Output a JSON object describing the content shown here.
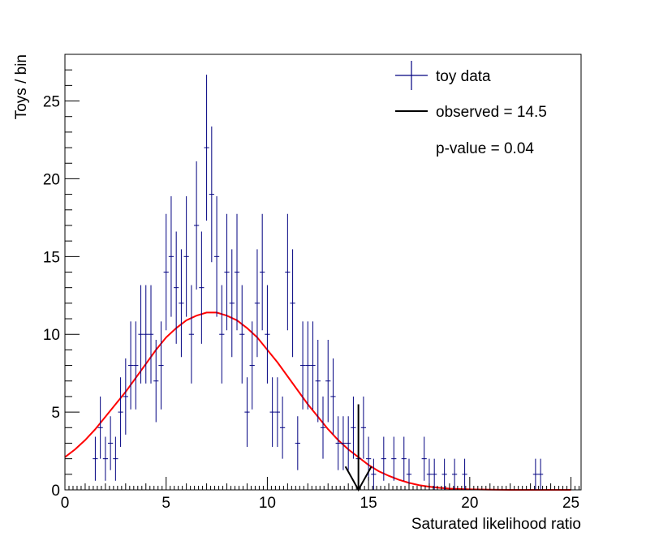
{
  "chart_data": {
    "type": "histogram",
    "xlabel": "Saturated likelihood ratio",
    "ylabel": "Toys / bin",
    "xlim": [
      0,
      25.5
    ],
    "ylim": [
      0,
      28
    ],
    "x_ticks": [
      "0",
      "5",
      "10",
      "15",
      "20",
      "25"
    ],
    "y_ticks": [
      "0",
      "5",
      "10",
      "15",
      "20",
      "25"
    ],
    "grid": false,
    "legend_position": "top-right",
    "legend": {
      "toy_label": "toy data",
      "observed_label": "observed = 14.5",
      "pvalue_label": "p-value = 0.04"
    },
    "colors": {
      "toy": "#000080",
      "fit": "#ff0000",
      "observed": "#000000"
    },
    "observed_value": 14.5,
    "bin_width": 0.25,
    "toy_points": [
      [
        1.5,
        2
      ],
      [
        1.75,
        4
      ],
      [
        2.0,
        2
      ],
      [
        2.25,
        3
      ],
      [
        2.5,
        2
      ],
      [
        2.75,
        5
      ],
      [
        3.0,
        6
      ],
      [
        3.25,
        8
      ],
      [
        3.5,
        8
      ],
      [
        3.75,
        10
      ],
      [
        4.0,
        10
      ],
      [
        4.25,
        10
      ],
      [
        4.5,
        7
      ],
      [
        4.75,
        8
      ],
      [
        5.0,
        14
      ],
      [
        5.25,
        15
      ],
      [
        5.5,
        13
      ],
      [
        5.75,
        12
      ],
      [
        6.0,
        15
      ],
      [
        6.25,
        10
      ],
      [
        6.5,
        17
      ],
      [
        6.75,
        13
      ],
      [
        7.0,
        22
      ],
      [
        7.25,
        19
      ],
      [
        7.5,
        15
      ],
      [
        7.75,
        10
      ],
      [
        8.0,
        14
      ],
      [
        8.25,
        12
      ],
      [
        8.5,
        14
      ],
      [
        8.75,
        10
      ],
      [
        9.0,
        5
      ],
      [
        9.25,
        8
      ],
      [
        9.5,
        12
      ],
      [
        9.75,
        14
      ],
      [
        10.0,
        10
      ],
      [
        10.25,
        5
      ],
      [
        10.5,
        5
      ],
      [
        10.75,
        4
      ],
      [
        11.0,
        14
      ],
      [
        11.25,
        12
      ],
      [
        11.5,
        3
      ],
      [
        11.75,
        8
      ],
      [
        12.0,
        8
      ],
      [
        12.25,
        8
      ],
      [
        12.5,
        7
      ],
      [
        12.75,
        4
      ],
      [
        13.0,
        7
      ],
      [
        13.25,
        6
      ],
      [
        13.5,
        3
      ],
      [
        13.75,
        3
      ],
      [
        14.0,
        3
      ],
      [
        14.25,
        4
      ],
      [
        14.5,
        2
      ],
      [
        14.75,
        4
      ],
      [
        15.0,
        2
      ],
      [
        15.25,
        1
      ],
      [
        15.75,
        2
      ],
      [
        16.25,
        2
      ],
      [
        16.75,
        2
      ],
      [
        17.0,
        1
      ],
      [
        17.75,
        2
      ],
      [
        18.0,
        1
      ],
      [
        18.25,
        1
      ],
      [
        18.75,
        1
      ],
      [
        19.25,
        1
      ],
      [
        19.75,
        1
      ],
      [
        23.25,
        1
      ],
      [
        23.5,
        1
      ]
    ],
    "fit_curve": {
      "x": [
        0,
        0.5,
        1,
        1.5,
        2,
        2.5,
        3,
        3.5,
        4,
        4.5,
        5,
        5.5,
        6,
        6.5,
        7,
        7.5,
        8,
        8.5,
        9,
        9.5,
        10,
        10.5,
        11,
        11.5,
        12,
        12.5,
        13,
        13.5,
        14,
        14.5,
        15,
        15.5,
        16,
        16.5,
        17,
        17.5,
        18,
        18.5,
        19,
        19.5,
        20,
        21,
        22,
        23,
        24,
        25
      ],
      "y": [
        2.1,
        2.6,
        3.2,
        3.9,
        4.7,
        5.5,
        6.3,
        7.2,
        8.1,
        9.0,
        9.8,
        10.4,
        10.9,
        11.2,
        11.4,
        11.4,
        11.2,
        10.9,
        10.4,
        9.8,
        9.0,
        8.2,
        7.3,
        6.4,
        5.5,
        4.7,
        3.9,
        3.2,
        2.6,
        2.1,
        1.6,
        1.2,
        0.9,
        0.65,
        0.45,
        0.3,
        0.2,
        0.13,
        0.08,
        0.05,
        0.03,
        0.01,
        0.0,
        0.0,
        0.0,
        0.0
      ]
    }
  }
}
